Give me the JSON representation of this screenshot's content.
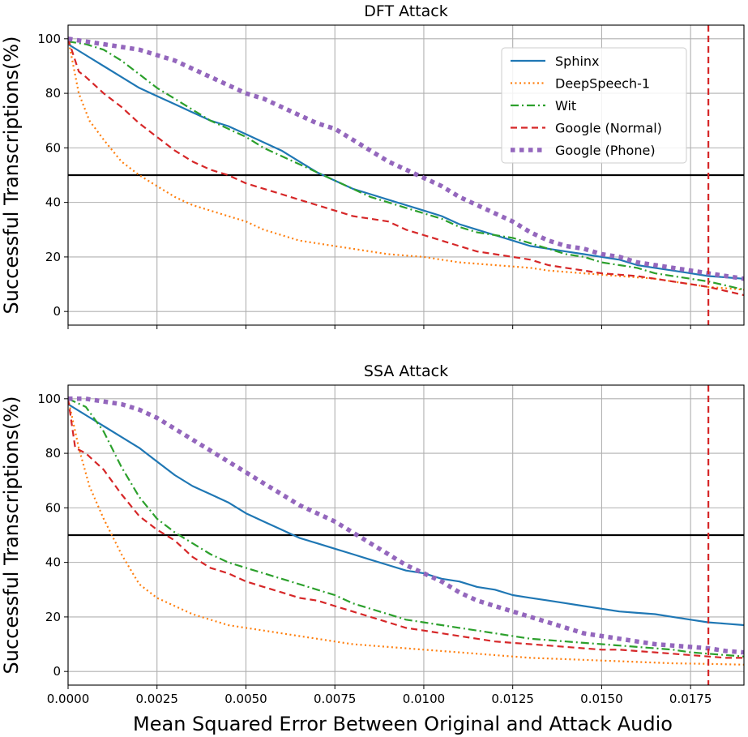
{
  "chart_data": [
    {
      "type": "line",
      "title": "DFT Attack",
      "ylabel": "Successful Transcriptions(%)",
      "xlabel": "",
      "xlim": [
        0,
        0.019
      ],
      "ylim": [
        -5,
        105
      ],
      "xticks": [
        "0.0000",
        "0.0025",
        "0.0050",
        "0.0075",
        "0.0100",
        "0.0125",
        "0.0150",
        "0.0175"
      ],
      "show_xtick_labels": false,
      "yticks": [
        "0",
        "20",
        "40",
        "60",
        "80",
        "100"
      ],
      "grid": true,
      "legend": "top-right",
      "hlines": [
        {
          "y": 50,
          "color": "#000000"
        }
      ],
      "vlines": [
        {
          "x": 0.018,
          "color": "#d62728",
          "style": "dashed"
        }
      ],
      "series": [
        {
          "name": "Sphinx",
          "color": "#1f77b4",
          "style": "solid",
          "x": [
            0,
            0.0005,
            0.001,
            0.0015,
            0.002,
            0.0025,
            0.003,
            0.0035,
            0.004,
            0.0045,
            0.005,
            0.0055,
            0.006,
            0.0065,
            0.007,
            0.0075,
            0.008,
            0.0085,
            0.009,
            0.0095,
            0.01,
            0.0105,
            0.011,
            0.0115,
            0.012,
            0.0125,
            0.013,
            0.0135,
            0.014,
            0.0145,
            0.015,
            0.0155,
            0.016,
            0.0165,
            0.017,
            0.0175,
            0.018,
            0.0185,
            0.019
          ],
          "y": [
            98,
            94,
            90,
            86,
            82,
            79,
            76,
            73,
            70,
            68,
            65,
            62,
            59,
            55,
            51,
            48,
            45,
            43,
            41,
            39,
            37,
            35,
            32,
            30,
            28,
            26,
            24,
            23,
            22,
            21,
            20,
            19,
            17,
            16,
            15,
            14,
            13,
            12.5,
            12
          ]
        },
        {
          "name": "DeepSpeech-1",
          "color": "#ff7f0e",
          "style": "dotted",
          "x": [
            0,
            0.0003,
            0.0006,
            0.001,
            0.0015,
            0.002,
            0.0025,
            0.003,
            0.0035,
            0.004,
            0.0045,
            0.005,
            0.0055,
            0.006,
            0.0065,
            0.007,
            0.0075,
            0.008,
            0.0085,
            0.009,
            0.0095,
            0.01,
            0.0105,
            0.011,
            0.0115,
            0.012,
            0.0125,
            0.013,
            0.0135,
            0.014,
            0.0145,
            0.015,
            0.0155,
            0.016,
            0.0165,
            0.017,
            0.0175,
            0.018,
            0.0185,
            0.019
          ],
          "y": [
            100,
            80,
            70,
            63,
            55,
            50,
            46,
            42,
            39,
            37,
            35,
            33,
            30,
            28,
            26,
            25,
            24,
            23,
            22,
            21,
            20.5,
            20,
            19,
            18,
            17.5,
            17,
            16.5,
            16,
            15,
            14.5,
            14,
            13.5,
            13,
            12.5,
            12,
            11,
            10,
            9,
            8.5,
            8
          ]
        },
        {
          "name": "Wit",
          "color": "#2ca02c",
          "style": "dashdot",
          "x": [
            0,
            0.0005,
            0.001,
            0.0015,
            0.002,
            0.0025,
            0.003,
            0.0035,
            0.004,
            0.0045,
            0.005,
            0.0055,
            0.006,
            0.0065,
            0.007,
            0.0075,
            0.008,
            0.0085,
            0.009,
            0.0095,
            0.01,
            0.0105,
            0.011,
            0.0115,
            0.012,
            0.0125,
            0.013,
            0.0135,
            0.014,
            0.0145,
            0.015,
            0.0155,
            0.016,
            0.0165,
            0.017,
            0.0175,
            0.018,
            0.0185,
            0.019
          ],
          "y": [
            99,
            98,
            96,
            92,
            87,
            82,
            78,
            74,
            70,
            67,
            64,
            60,
            57,
            54,
            51,
            48,
            45,
            42,
            40,
            38,
            36,
            34,
            31,
            29,
            28,
            27,
            25,
            23,
            21,
            20,
            18,
            17,
            16,
            14,
            13,
            12,
            11,
            9.5,
            8
          ]
        },
        {
          "name": "Google (Normal)",
          "color": "#d62728",
          "style": "dashed",
          "x": [
            0,
            0.0003,
            0.0005,
            0.001,
            0.0015,
            0.002,
            0.0025,
            0.003,
            0.0035,
            0.004,
            0.0045,
            0.005,
            0.0055,
            0.006,
            0.0065,
            0.007,
            0.0075,
            0.008,
            0.0085,
            0.009,
            0.0095,
            0.01,
            0.0105,
            0.011,
            0.0115,
            0.012,
            0.0125,
            0.013,
            0.0135,
            0.014,
            0.0145,
            0.015,
            0.0155,
            0.016,
            0.0165,
            0.017,
            0.0175,
            0.018,
            0.0185,
            0.019
          ],
          "y": [
            100,
            88,
            86,
            80,
            75,
            69,
            64,
            59,
            55,
            52,
            50,
            47,
            45,
            43,
            41,
            39,
            37,
            35,
            34,
            33,
            30,
            28,
            26,
            24,
            22,
            21,
            20,
            19,
            17,
            16,
            15,
            14,
            13.5,
            13,
            12,
            11,
            10,
            9,
            7.5,
            6
          ]
        },
        {
          "name": "Google (Phone)",
          "color": "#9467bd",
          "style": "dotted-thick",
          "x": [
            0,
            0.0005,
            0.001,
            0.0015,
            0.002,
            0.0025,
            0.003,
            0.0035,
            0.004,
            0.0045,
            0.005,
            0.0055,
            0.006,
            0.0065,
            0.007,
            0.0075,
            0.008,
            0.0085,
            0.009,
            0.0095,
            0.01,
            0.0105,
            0.011,
            0.0115,
            0.012,
            0.0125,
            0.013,
            0.0135,
            0.014,
            0.0145,
            0.015,
            0.0155,
            0.016,
            0.0165,
            0.017,
            0.0175,
            0.018,
            0.0185,
            0.019
          ],
          "y": [
            100,
            99,
            98,
            97,
            96,
            94,
            92,
            89,
            86,
            83,
            80,
            78,
            75,
            72,
            69,
            67,
            63,
            59,
            55,
            52,
            49,
            46,
            42,
            39,
            36,
            33,
            29,
            26,
            24,
            23,
            21,
            20,
            18,
            17,
            16,
            15,
            14,
            13,
            12
          ]
        }
      ]
    },
    {
      "type": "line",
      "title": "SSA Attack",
      "ylabel": "Successful Transcriptions(%)",
      "xlabel": "Mean Squared Error Between Original and Attack Audio",
      "xlim": [
        0,
        0.019
      ],
      "ylim": [
        -5,
        105
      ],
      "xticks": [
        "0.0000",
        "0.0025",
        "0.0050",
        "0.0075",
        "0.0100",
        "0.0125",
        "0.0150",
        "0.0175"
      ],
      "show_xtick_labels": true,
      "yticks": [
        "0",
        "20",
        "40",
        "60",
        "80",
        "100"
      ],
      "grid": true,
      "legend": "none",
      "hlines": [
        {
          "y": 50,
          "color": "#000000"
        }
      ],
      "vlines": [
        {
          "x": 0.018,
          "color": "#d62728",
          "style": "dashed"
        }
      ],
      "series": [
        {
          "name": "Sphinx",
          "color": "#1f77b4",
          "style": "solid",
          "x": [
            0,
            0.0005,
            0.001,
            0.0015,
            0.002,
            0.0025,
            0.003,
            0.0035,
            0.004,
            0.0045,
            0.005,
            0.0055,
            0.006,
            0.0065,
            0.007,
            0.0075,
            0.008,
            0.0085,
            0.009,
            0.0095,
            0.01,
            0.0105,
            0.011,
            0.0115,
            0.012,
            0.0125,
            0.013,
            0.0135,
            0.014,
            0.0145,
            0.015,
            0.0155,
            0.016,
            0.0165,
            0.017,
            0.0175,
            0.018,
            0.0185,
            0.019
          ],
          "y": [
            98,
            94,
            90,
            86,
            82,
            77,
            72,
            68,
            65,
            62,
            58,
            55,
            52,
            49,
            47,
            45,
            43,
            41,
            39,
            37,
            36,
            34,
            33,
            31,
            30,
            28,
            27,
            26,
            25,
            24,
            23,
            22,
            21.5,
            21,
            20,
            19,
            18,
            17.5,
            17
          ]
        },
        {
          "name": "DeepSpeech-1",
          "color": "#ff7f0e",
          "style": "dotted",
          "x": [
            0,
            0.0003,
            0.0006,
            0.001,
            0.0015,
            0.002,
            0.0025,
            0.003,
            0.0035,
            0.004,
            0.0045,
            0.005,
            0.0055,
            0.006,
            0.0065,
            0.007,
            0.0075,
            0.008,
            0.0085,
            0.009,
            0.0095,
            0.01,
            0.011,
            0.012,
            0.013,
            0.014,
            0.015,
            0.016,
            0.017,
            0.018,
            0.019
          ],
          "y": [
            100,
            82,
            68,
            56,
            43,
            32,
            27,
            24,
            21,
            19,
            17,
            16,
            15,
            14,
            13,
            12,
            11,
            10,
            9.5,
            9,
            8.5,
            8,
            7,
            6,
            5,
            4.5,
            4,
            3.5,
            3,
            2.8,
            2.5
          ]
        },
        {
          "name": "Wit",
          "color": "#2ca02c",
          "style": "dashdot",
          "x": [
            0,
            0.0005,
            0.001,
            0.0015,
            0.002,
            0.0025,
            0.003,
            0.0035,
            0.004,
            0.0045,
            0.005,
            0.0055,
            0.006,
            0.0065,
            0.007,
            0.0075,
            0.008,
            0.0085,
            0.009,
            0.0095,
            0.01,
            0.0105,
            0.011,
            0.0115,
            0.012,
            0.0125,
            0.013,
            0.0135,
            0.014,
            0.0145,
            0.015,
            0.0155,
            0.016,
            0.0165,
            0.017,
            0.0175,
            0.018,
            0.0185,
            0.019
          ],
          "y": [
            100,
            97,
            88,
            75,
            64,
            56,
            51,
            47,
            43,
            40,
            38,
            36,
            34,
            32,
            30,
            28,
            25,
            23,
            21,
            19,
            18,
            17,
            16,
            15,
            14,
            13,
            12,
            11.5,
            11,
            10.5,
            10,
            9.5,
            9,
            8.5,
            8,
            7,
            6.5,
            6,
            5.5
          ]
        },
        {
          "name": "Google (Normal)",
          "color": "#d62728",
          "style": "dashed",
          "x": [
            0,
            0.0002,
            0.0005,
            0.001,
            0.0015,
            0.002,
            0.0025,
            0.003,
            0.0035,
            0.004,
            0.0045,
            0.005,
            0.0055,
            0.006,
            0.0065,
            0.007,
            0.0075,
            0.008,
            0.0085,
            0.009,
            0.0095,
            0.01,
            0.0105,
            0.011,
            0.0115,
            0.012,
            0.0125,
            0.013,
            0.0135,
            0.014,
            0.0145,
            0.015,
            0.0155,
            0.016,
            0.0165,
            0.017,
            0.0175,
            0.018,
            0.0185,
            0.019
          ],
          "y": [
            100,
            82,
            80,
            74,
            65,
            57,
            52,
            48,
            42,
            38,
            36,
            33,
            31,
            29,
            27,
            26,
            24,
            22,
            20,
            18,
            16,
            15,
            14,
            13,
            12,
            11,
            10.5,
            10,
            9.5,
            9,
            8.5,
            8,
            8,
            7.5,
            7,
            6.5,
            6,
            5.5,
            5,
            5
          ]
        },
        {
          "name": "Google (Phone)",
          "color": "#9467bd",
          "style": "dotted-thick",
          "x": [
            0,
            0.0005,
            0.001,
            0.0015,
            0.002,
            0.0025,
            0.003,
            0.0035,
            0.004,
            0.0045,
            0.005,
            0.0055,
            0.006,
            0.0065,
            0.007,
            0.0075,
            0.008,
            0.0085,
            0.009,
            0.0095,
            0.01,
            0.0105,
            0.011,
            0.0115,
            0.012,
            0.0125,
            0.013,
            0.0135,
            0.014,
            0.0145,
            0.015,
            0.0155,
            0.016,
            0.0165,
            0.017,
            0.0175,
            0.018,
            0.0185,
            0.019
          ],
          "y": [
            100,
            100,
            99,
            98,
            96,
            93,
            89,
            85,
            81,
            77,
            73,
            69,
            65,
            61,
            58,
            55,
            51,
            47,
            43,
            39,
            36,
            33,
            29,
            26,
            24,
            22,
            20,
            18,
            16,
            14,
            13,
            12,
            11,
            10,
            9.5,
            9,
            8.5,
            7.5,
            7
          ]
        }
      ]
    }
  ]
}
